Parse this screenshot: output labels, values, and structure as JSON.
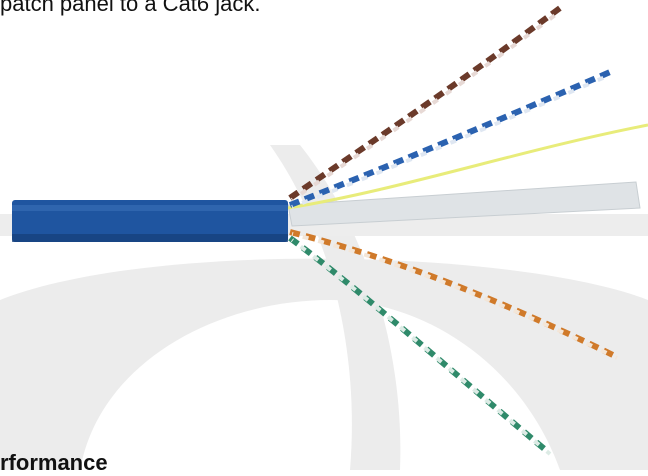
{
  "text": {
    "top_line": "patch panel to a Cat6 jack.",
    "bottom_heading": "rformance"
  },
  "colors": {
    "jacket": "#1f55a0",
    "pair_brown": "#6b3a2a",
    "pair_blue": "#2b62b0",
    "pair_orange": "#d07a2a",
    "pair_green": "#2f8a6a",
    "ripcord": "#e8ec7a",
    "separator": "#dfe3e6",
    "watermark": "#e9e9e9"
  }
}
